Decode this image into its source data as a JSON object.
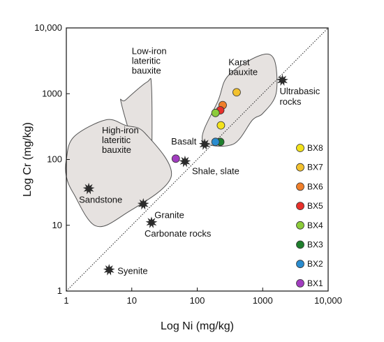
{
  "chart_data": {
    "type": "scatter",
    "title": "",
    "xlabel": "Log Ni (mg/kg)",
    "ylabel": "Log Cr (mg/kg)",
    "x_scale": "log",
    "y_scale": "log",
    "xlim": [
      1,
      10000
    ],
    "ylim": [
      1,
      10000
    ],
    "x_ticks": [
      {
        "value": 1,
        "label": "1"
      },
      {
        "value": 10,
        "label": "10"
      },
      {
        "value": 100,
        "label": "100"
      },
      {
        "value": 1000,
        "label": "1000"
      },
      {
        "value": 10000,
        "label": "10,000"
      }
    ],
    "y_ticks": [
      {
        "value": 1,
        "label": "1"
      },
      {
        "value": 10,
        "label": "10"
      },
      {
        "value": 100,
        "label": "100"
      },
      {
        "value": 1000,
        "label": "1000"
      },
      {
        "value": 10000,
        "label": "10,000"
      }
    ],
    "grid": false,
    "legend_position": "right",
    "reference_line": {
      "label": "",
      "points": [
        [
          1,
          1
        ],
        [
          10000,
          10000
        ]
      ],
      "style": "dotted"
    },
    "fields": [
      {
        "name": "Low-iron lateritic bauxite",
        "label_lines": [
          "Low-iron",
          "lateritic",
          "bauxite"
        ],
        "label_at": [
          10,
          4000
        ],
        "polygon": [
          [
            8,
            800
          ],
          [
            17,
            1500
          ],
          [
            20,
            1300
          ],
          [
            20,
            100
          ],
          [
            17,
            70
          ],
          [
            14,
            70
          ],
          [
            7,
            680
          ]
        ]
      },
      {
        "name": "High-iron lateritic bauxite",
        "label_lines": [
          "High-iron",
          "lateritic",
          "bauxite"
        ],
        "label_at": [
          3.5,
          250
        ],
        "polygon": [
          [
            1,
            55
          ],
          [
            1,
            100
          ],
          [
            1.3,
            220
          ],
          [
            4,
            400
          ],
          [
            8,
            330
          ],
          [
            16,
            250
          ],
          [
            40,
            55
          ],
          [
            8,
            15
          ],
          [
            2.8,
            9.8
          ],
          [
            1.3,
            30
          ]
        ]
      },
      {
        "name": "Karst bauxite",
        "label_lines": [
          "Karst",
          "bauxite"
        ],
        "label_at": [
          300,
          2700
        ],
        "polygon": [
          [
            120,
            200
          ],
          [
            210,
            800
          ],
          [
            300,
            1900
          ],
          [
            900,
            3800
          ],
          [
            1500,
            3300
          ],
          [
            1600,
            1000
          ],
          [
            1000,
            500
          ],
          [
            700,
            400
          ],
          [
            350,
            170
          ]
        ]
      }
    ],
    "reference_rocks": [
      {
        "name": "Ultrabasic rocks",
        "label_lines": [
          "Ultrabasic",
          "rocks"
        ],
        "x": 2000,
        "y": 1600
      },
      {
        "name": "Basalt",
        "label_lines": [
          "Basalt"
        ],
        "x": 130,
        "y": 170
      },
      {
        "name": "Shale, slate",
        "label_lines": [
          "Shale, slate"
        ],
        "x": 65,
        "y": 93
      },
      {
        "name": "Sandstone",
        "label_lines": [
          "Sandstone"
        ],
        "x": 2.2,
        "y": 36
      },
      {
        "name": "Granite",
        "label_lines": [
          "Granite"
        ],
        "x": 15,
        "y": 21
      },
      {
        "name": "Carbonate rocks",
        "label_lines": [
          "Carbonate rocks"
        ],
        "x": 20,
        "y": 11
      },
      {
        "name": "Syenite",
        "label_lines": [
          "Syenite"
        ],
        "x": 4.5,
        "y": 2.1
      }
    ],
    "series": [
      {
        "name": "BX8",
        "color": "#f3e21a",
        "points": [
          [
            230,
            330
          ]
        ]
      },
      {
        "name": "BX7",
        "color": "#f2c12e",
        "points": [
          [
            400,
            1050
          ]
        ]
      },
      {
        "name": "BX6",
        "color": "#f07f2a",
        "points": [
          [
            245,
            670
          ]
        ]
      },
      {
        "name": "BX5",
        "color": "#e8302a",
        "points": [
          [
            225,
            560
          ]
        ]
      },
      {
        "name": "BX4",
        "color": "#8ccc3a",
        "points": [
          [
            190,
            510
          ]
        ]
      },
      {
        "name": "BX3",
        "color": "#1e7f2c",
        "points": [
          [
            225,
            185
          ]
        ]
      },
      {
        "name": "BX2",
        "color": "#2a8ccf",
        "points": [
          [
            190,
            185
          ]
        ]
      },
      {
        "name": "BX1",
        "color": "#a13dbf",
        "points": [
          [
            47,
            103
          ]
        ]
      }
    ]
  }
}
